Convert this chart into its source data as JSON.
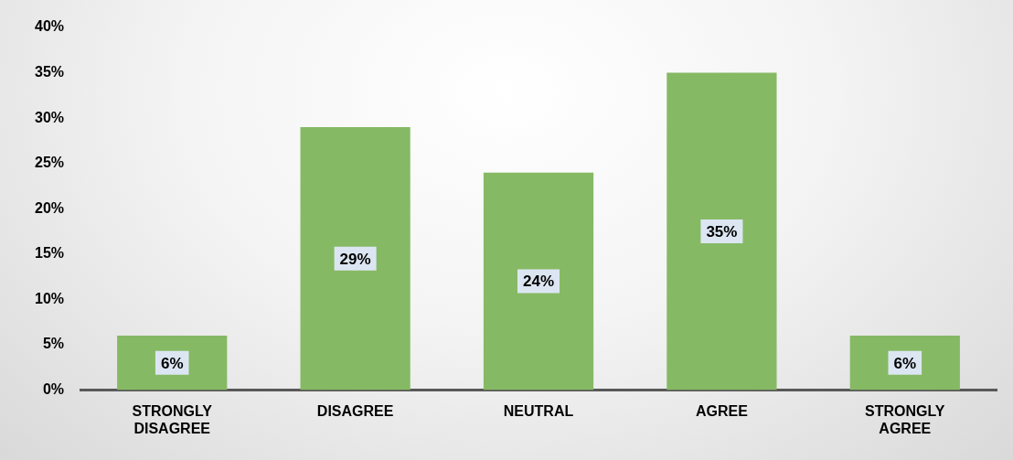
{
  "chart_data": {
    "type": "bar",
    "categories": [
      "STRONGLY DISAGREE",
      "DISAGREE",
      "NEUTRAL",
      "AGREE",
      "STRONGLY AGREE"
    ],
    "values": [
      6,
      29,
      24,
      35,
      6
    ],
    "color": "#86b964",
    "ylim": [
      0,
      40
    ],
    "yticks": [
      {
        "value": 0,
        "label": "0%"
      },
      {
        "value": 5,
        "label": "5%"
      },
      {
        "value": 10,
        "label": "10%"
      },
      {
        "value": 15,
        "label": "15%"
      },
      {
        "value": 20,
        "label": "20%"
      },
      {
        "value": 25,
        "label": "25%"
      },
      {
        "value": 30,
        "label": "30%"
      },
      {
        "value": 35,
        "label": "35%"
      },
      {
        "value": 40,
        "label": "40%"
      }
    ],
    "grid": false,
    "legend": false,
    "value_labels": [
      "6%",
      "29%",
      "24%",
      "35%",
      "6%"
    ]
  }
}
